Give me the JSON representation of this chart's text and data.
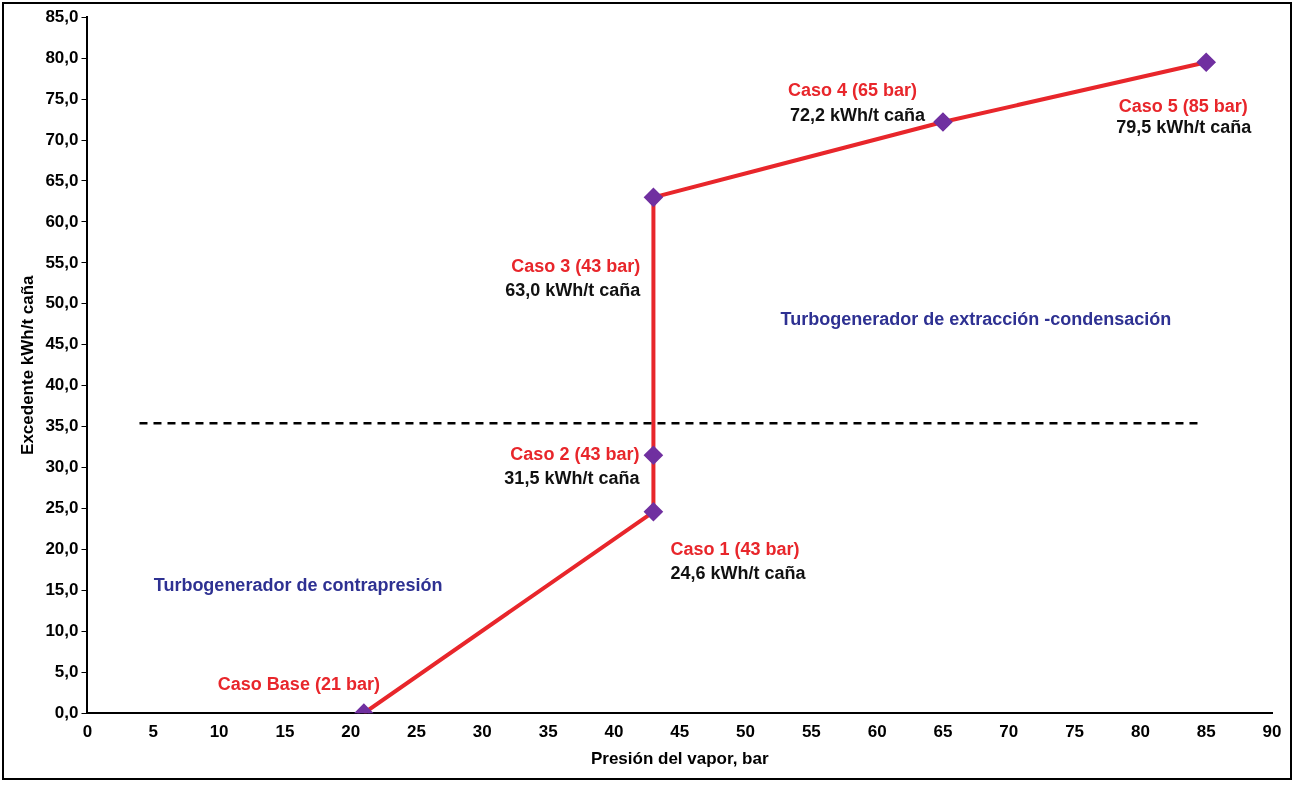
{
  "chart_data": {
    "type": "line",
    "xlabel": "Presión del vapor, bar",
    "ylabel": "Excedente kWh/t caña",
    "x": [
      21,
      43,
      43,
      43,
      65,
      85
    ],
    "series": [
      {
        "color": "#e8262b",
        "values": [
          0,
          24.6,
          31.5,
          63.0,
          72.2,
          79.5
        ]
      }
    ],
    "marker": "diamond",
    "line_style": "solid",
    "grid": false,
    "legend": false,
    "xlim": [
      0,
      90
    ],
    "xticks": [
      0,
      5,
      10,
      15,
      20,
      25,
      30,
      35,
      40,
      45,
      50,
      55,
      60,
      65,
      70,
      75,
      80,
      85,
      90
    ],
    "ylim": [
      0,
      85
    ],
    "yticks": [
      {
        "value": 0,
        "label": "0,0"
      },
      {
        "value": 5,
        "label": "5,0"
      },
      {
        "value": 10,
        "label": "10,0"
      },
      {
        "value": 15,
        "label": "15,0"
      },
      {
        "value": 20,
        "label": "20,0"
      },
      {
        "value": 25,
        "label": "25,0"
      },
      {
        "value": 30,
        "label": "30,0"
      },
      {
        "value": 35,
        "label": "35,0"
      },
      {
        "value": 40,
        "label": "40,0"
      },
      {
        "value": 45,
        "label": "45,0"
      },
      {
        "value": 50,
        "label": "50,0"
      },
      {
        "value": 55,
        "label": "55,0"
      },
      {
        "value": 60,
        "label": "60,0"
      },
      {
        "value": 65,
        "label": "65,0"
      },
      {
        "value": 70,
        "label": "70,0"
      },
      {
        "value": 75,
        "label": "75,0"
      },
      {
        "value": 80,
        "label": "80,0"
      },
      {
        "value": 85,
        "label": "85,0"
      }
    ],
    "ref_lines": [
      {
        "axis": "y",
        "value": 35.4,
        "color": "#000000",
        "line_style": "dashed"
      }
    ],
    "annotations": [
      {
        "text": "Caso Base (21 bar)",
        "x": 21,
        "y": 0
      },
      {
        "text": "Caso 1 (43 bar)",
        "x": 43,
        "y": 24.6
      },
      {
        "text": "24,6 kWh/t caña",
        "x": 43,
        "y": 24.6
      },
      {
        "text": "Caso 2 (43 bar)",
        "x": 43,
        "y": 31.5
      },
      {
        "text": "31,5 kWh/t caña",
        "x": 43,
        "y": 31.5
      },
      "Caso 3 (43 bar)",
      "63,0 kWh/t caña",
      {
        "text": "Caso 4 (65 bar)",
        "x": 65,
        "y": 72.2
      },
      {
        "text": "72,2 kWh/t caña",
        "x": 65,
        "y": 72.2
      },
      {
        "text": "Caso 5 (85 bar)",
        "x": 85,
        "y": 79.5
      },
      "79,5 kWh/t caña",
      "Turbogenerador de contrapresión",
      "Turbogenerador de extracción -condensación"
    ]
  }
}
